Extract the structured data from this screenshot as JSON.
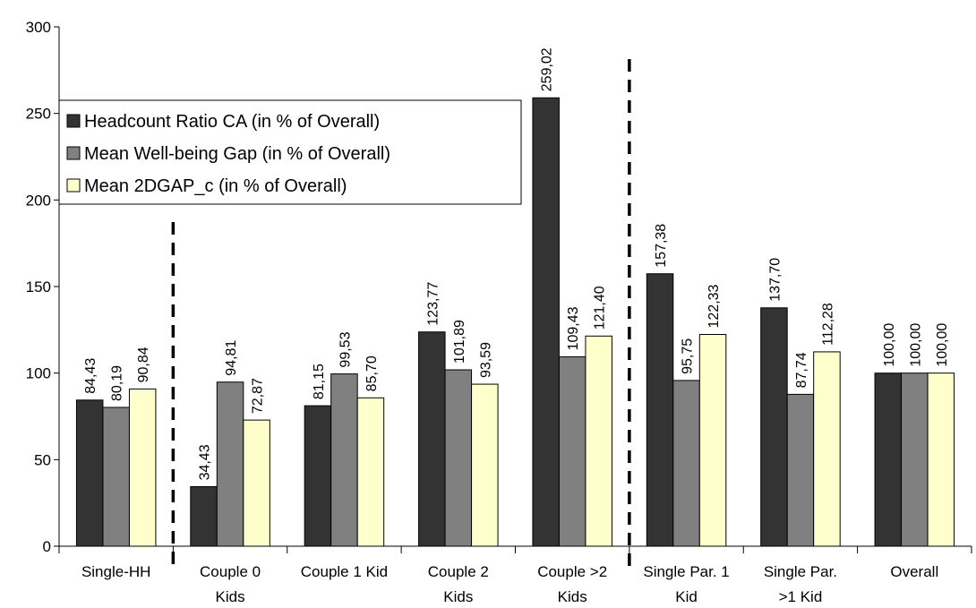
{
  "chart_data": {
    "type": "bar",
    "title": "",
    "xlabel": "",
    "ylabel": "",
    "ylim": [
      0,
      300
    ],
    "yticks": [
      0,
      50,
      100,
      150,
      200,
      250,
      300
    ],
    "grid": false,
    "legend_position": "top-left",
    "categories": [
      [
        "Single-HH"
      ],
      [
        "Couple 0",
        "Kids"
      ],
      [
        "Couple 1 Kid"
      ],
      [
        "Couple 2",
        "Kids"
      ],
      [
        "Couple >2",
        "Kids"
      ],
      [
        "Single Par. 1",
        "Kid"
      ],
      [
        "Single Par.",
        ">1 Kid"
      ],
      [
        "Overall"
      ]
    ],
    "series": [
      {
        "name": "Headcount Ratio CA (in % of Overall)",
        "color": "#333333",
        "values": [
          84.43,
          34.43,
          81.15,
          123.77,
          259.02,
          157.38,
          137.7,
          100.0
        ],
        "labels": [
          "84,43",
          "34,43",
          "81,15",
          "123,77",
          "259,02",
          "157,38",
          "137,70",
          "100,00"
        ]
      },
      {
        "name": "Mean Well-being Gap (in % of Overall)",
        "color": "#808080",
        "values": [
          80.19,
          94.81,
          99.53,
          101.89,
          109.43,
          95.75,
          87.74,
          100.0
        ],
        "labels": [
          "80,19",
          "94,81",
          "99,53",
          "101,89",
          "109,43",
          "95,75",
          "87,74",
          "100,00"
        ]
      },
      {
        "name": "Mean 2DGAP_c (in % of Overall)",
        "color": "#ffffcc",
        "values": [
          90.84,
          72.87,
          85.7,
          93.59,
          121.4,
          122.33,
          112.28,
          100.0
        ],
        "labels": [
          "90,84",
          "72,87",
          "85,70",
          "93,59",
          "121,40",
          "122,33",
          "112,28",
          "100,00"
        ]
      }
    ],
    "separators_after_category_index": [
      0,
      4
    ]
  }
}
